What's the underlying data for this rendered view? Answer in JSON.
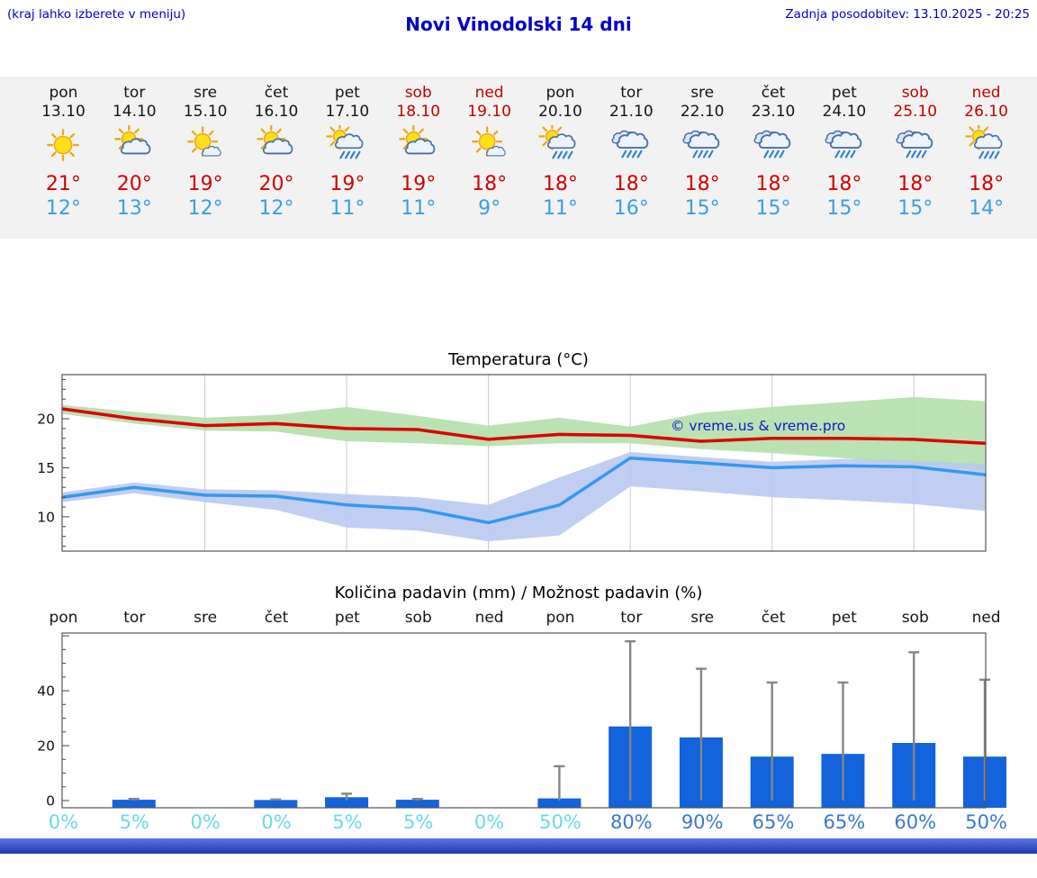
{
  "page": {
    "top_left_note": "(kraj lahko izberete v meniju)",
    "title": "Novi Vinodolski 14 dni",
    "last_update": "Zadnja posodobitev: 13.10.2025 - 20:25",
    "copyright": "© vreme.us & vreme.pro"
  },
  "colors": {
    "accent_blue": "#1414cc",
    "title_blue": "#0000c8",
    "weekend_red": "#c00000",
    "tmax_red": "#d40000",
    "tmin_blue": "#3a9fe0",
    "strip_bg": "#f2f2f2",
    "line_red": "#dd0000",
    "line_blue": "#3399ee",
    "band_green": "#b2dfab",
    "band_blue": "#b9c9ef",
    "bar_blue": "#1263dc",
    "whisker_gray": "#858585",
    "prob_low_cyan": "#6dd8e8",
    "prob_high_blue": "#3a78cc"
  },
  "forecast": {
    "days": [
      {
        "name": "pon",
        "date": "13.10",
        "weekend": false,
        "icon": "sunny",
        "tmax": "21°",
        "tmin": "12°"
      },
      {
        "name": "tor",
        "date": "14.10",
        "weekend": false,
        "icon": "partly-cloudy",
        "tmax": "20°",
        "tmin": "13°"
      },
      {
        "name": "sre",
        "date": "15.10",
        "weekend": false,
        "icon": "mostly-sunny",
        "tmax": "19°",
        "tmin": "12°"
      },
      {
        "name": "čet",
        "date": "16.10",
        "weekend": false,
        "icon": "partly-cloudy",
        "tmax": "20°",
        "tmin": "12°"
      },
      {
        "name": "pet",
        "date": "17.10",
        "weekend": false,
        "icon": "sun-rain",
        "tmax": "19°",
        "tmin": "11°"
      },
      {
        "name": "sob",
        "date": "18.10",
        "weekend": true,
        "icon": "partly-cloudy",
        "tmax": "19°",
        "tmin": "11°"
      },
      {
        "name": "ned",
        "date": "19.10",
        "weekend": true,
        "icon": "mostly-sunny",
        "tmax": "18°",
        "tmin": "9°"
      },
      {
        "name": "pon",
        "date": "20.10",
        "weekend": false,
        "icon": "sun-rain",
        "tmax": "18°",
        "tmin": "11°"
      },
      {
        "name": "tor",
        "date": "21.10",
        "weekend": false,
        "icon": "rain",
        "tmax": "18°",
        "tmin": "16°"
      },
      {
        "name": "sre",
        "date": "22.10",
        "weekend": false,
        "icon": "rain",
        "tmax": "18°",
        "tmin": "15°"
      },
      {
        "name": "čet",
        "date": "23.10",
        "weekend": false,
        "icon": "rain",
        "tmax": "18°",
        "tmin": "15°"
      },
      {
        "name": "pet",
        "date": "24.10",
        "weekend": false,
        "icon": "rain",
        "tmax": "18°",
        "tmin": "15°"
      },
      {
        "name": "sob",
        "date": "25.10",
        "weekend": true,
        "icon": "rain",
        "tmax": "18°",
        "tmin": "15°"
      },
      {
        "name": "ned",
        "date": "26.10",
        "weekend": true,
        "icon": "sun-rain",
        "tmax": "18°",
        "tmin": "14°"
      }
    ]
  },
  "chart_data": [
    {
      "type": "line",
      "title": "Temperatura (°C)",
      "categories": [
        "pon",
        "tor",
        "sre",
        "čet",
        "pet",
        "sob",
        "ned",
        "pon",
        "tor",
        "sre",
        "čet",
        "pet",
        "sob",
        "ned"
      ],
      "ylim": [
        6.5,
        24.5
      ],
      "yticks": [
        10,
        15,
        20
      ],
      "grid": "vertical",
      "series": [
        {
          "name": "max_temp",
          "color": "#dd0000",
          "values": [
            21,
            20,
            19.3,
            19.5,
            19,
            18.9,
            17.9,
            18.4,
            18.3,
            17.7,
            18,
            18,
            17.9,
            17.5
          ]
        },
        {
          "name": "min_temp",
          "color": "#3399ee",
          "values": [
            12,
            13,
            12.2,
            12.1,
            11.2,
            10.8,
            9.4,
            11.2,
            16,
            15.5,
            15,
            15.2,
            15.1,
            14.3
          ]
        }
      ],
      "bands": [
        {
          "name": "max_range",
          "color": "#b2dfab",
          "upper": [
            21.4,
            20.7,
            20.1,
            20.4,
            21.2,
            20.3,
            19.3,
            20.1,
            19.2,
            20.6,
            21.2,
            21.7,
            22.2,
            21.8
          ],
          "lower": [
            20.5,
            19.5,
            18.8,
            18.7,
            17.7,
            17.5,
            17.2,
            17.5,
            17.5,
            16.9,
            16.5,
            16,
            15.3,
            14.7
          ]
        },
        {
          "name": "min_range",
          "color": "#b9c9ef",
          "upper": [
            12.5,
            13.5,
            12.8,
            12.7,
            12.3,
            12,
            11.2,
            14,
            16.6,
            16.1,
            15.6,
            15.9,
            15.7,
            15.4
          ],
          "lower": [
            11.5,
            12.4,
            11.5,
            10.7,
            8.9,
            8.6,
            7.5,
            8.1,
            13.1,
            12.6,
            12,
            11.7,
            11.3,
            10.6
          ]
        }
      ]
    },
    {
      "type": "bar",
      "title": "Količina padavin (mm) / Možnost padavin (%)",
      "categories": [
        "pon",
        "tor",
        "sre",
        "čet",
        "pet",
        "sob",
        "ned",
        "pon",
        "tor",
        "sre",
        "čet",
        "pet",
        "sob",
        "ned"
      ],
      "ylim": [
        0,
        61
      ],
      "yticks": [
        0,
        20,
        40
      ],
      "bar_color": "#1263dc",
      "whisker_color": "#858585",
      "values_mm": [
        0,
        0.3,
        0,
        0.2,
        1.2,
        0.3,
        0,
        0.8,
        27,
        23,
        16,
        17,
        21,
        16
      ],
      "whisker_max_mm": [
        0,
        0.6,
        0,
        0.4,
        2.5,
        0.6,
        0,
        12.5,
        58,
        48,
        43,
        43,
        54,
        44
      ],
      "probability_pct": [
        0,
        5,
        0,
        0,
        5,
        5,
        0,
        50,
        80,
        90,
        65,
        65,
        60,
        50
      ],
      "probability_colors": [
        "#6dd8e8",
        "#6dd8e8",
        "#6dd8e8",
        "#6dd8e8",
        "#6dd8e8",
        "#6dd8e8",
        "#6dd8e8",
        "#6dd8e8",
        "#3a78cc",
        "#3a78cc",
        "#3a78cc",
        "#3a78cc",
        "#3a78cc",
        "#3a78cc"
      ]
    }
  ]
}
